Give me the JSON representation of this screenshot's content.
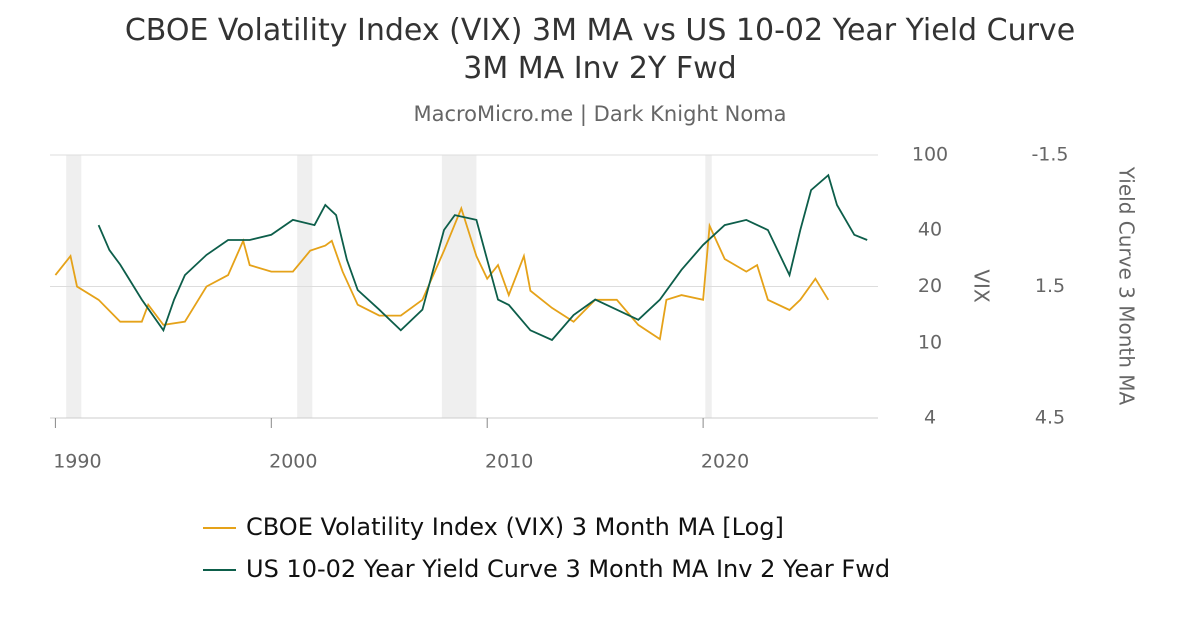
{
  "chart_data": {
    "type": "line",
    "title": "CBOE Volatility Index (VIX) 3M MA vs US 10-02 Year Yield Curve 3M MA Inv 2Y Fwd",
    "subtitle": "MacroMicro.me | Dark Knight Noma",
    "y_label": "VIX",
    "y2_label": "Yield Curve 3 Month MA",
    "xlim": [
      1989.75,
      2028.1
    ],
    "xticks": [
      1990,
      2000,
      2010,
      2020
    ],
    "ylim": [
      4,
      100
    ],
    "yticks": [
      4,
      10,
      20,
      40,
      100
    ],
    "ylog": true,
    "y2lim": [
      4.5,
      -1.5
    ],
    "y2ticks": [
      4.5,
      1.5,
      -1.5
    ],
    "grid": true,
    "shaded_ranges": [
      [
        1990.5,
        1991.2
      ],
      [
        2001.2,
        2001.9
      ],
      [
        2007.9,
        2009.5
      ],
      [
        2020.1,
        2020.4
      ]
    ],
    "series": [
      {
        "name": "CBOE Volatility Index (VIX) 3 Month MA [Log]",
        "color": "#e5a219",
        "x": [
          1990.0,
          1990.7,
          1991.0,
          1992.0,
          1993.0,
          1994.0,
          1994.3,
          1995.0,
          1996.0,
          1997.0,
          1998.0,
          1998.7,
          1999.0,
          2000.0,
          2001.0,
          2001.8,
          2002.5,
          2002.8,
          2003.3,
          2004.0,
          2005.0,
          2006.0,
          2007.0,
          2008.0,
          2008.8,
          2009.5,
          2010.0,
          2010.5,
          2011.0,
          2011.7,
          2012.0,
          2013.0,
          2014.0,
          2015.0,
          2016.0,
          2017.0,
          2018.0,
          2018.3,
          2019.0,
          2020.0,
          2020.3,
          2021.0,
          2022.0,
          2022.5,
          2023.0,
          2024.0,
          2024.5,
          2025.2,
          2025.8
        ],
        "values": [
          23,
          29,
          20,
          17,
          13,
          13,
          16,
          12.5,
          13,
          20,
          23,
          35,
          26,
          24,
          24,
          31,
          33,
          35,
          24,
          16,
          14,
          14,
          17,
          31,
          52,
          29,
          22,
          26,
          18,
          29,
          19,
          15.4,
          13,
          17,
          17,
          12.5,
          10.5,
          17,
          18,
          17,
          42,
          28,
          24,
          26,
          17,
          15,
          17,
          22,
          17
        ]
      },
      {
        "name": "US 10-02 Year Yield Curve 3 Month MA Inv 2 Year Fwd",
        "color": "#0d5e4a",
        "axis": "y2",
        "x": [
          1992.0,
          1992.5,
          1993.0,
          1994.0,
          1995.0,
          1995.5,
          1996.0,
          1997.0,
          1998.0,
          1999.0,
          2000.0,
          2001.0,
          2002.0,
          2002.5,
          2003.0,
          2003.5,
          2004.0,
          2005.0,
          2006.0,
          2007.0,
          2008.0,
          2008.5,
          2009.5,
          2010.0,
          2010.5,
          2011.0,
          2012.0,
          2013.0,
          2014.0,
          2015.0,
          2016.0,
          2017.0,
          2018.0,
          2019.0,
          2020.0,
          2021.0,
          2022.0,
          2023.0,
          2024.0,
          2024.5,
          2025.0,
          2025.8,
          2026.2,
          2027.0,
          2027.6
        ],
        "values": [
          0.1,
          0.67,
          1.0,
          1.8,
          2.5,
          1.8,
          1.24,
          0.78,
          0.44,
          0.44,
          0.32,
          -0.02,
          0.1,
          -0.36,
          -0.13,
          0.89,
          1.58,
          2.03,
          2.5,
          2.03,
          0.21,
          -0.13,
          -0.02,
          0.89,
          1.8,
          1.92,
          2.5,
          2.72,
          2.15,
          1.8,
          2.03,
          2.26,
          1.8,
          1.12,
          0.55,
          0.1,
          -0.02,
          0.21,
          1.24,
          0.21,
          -0.7,
          -1.04,
          -0.36,
          0.32,
          0.44
        ]
      }
    ]
  }
}
